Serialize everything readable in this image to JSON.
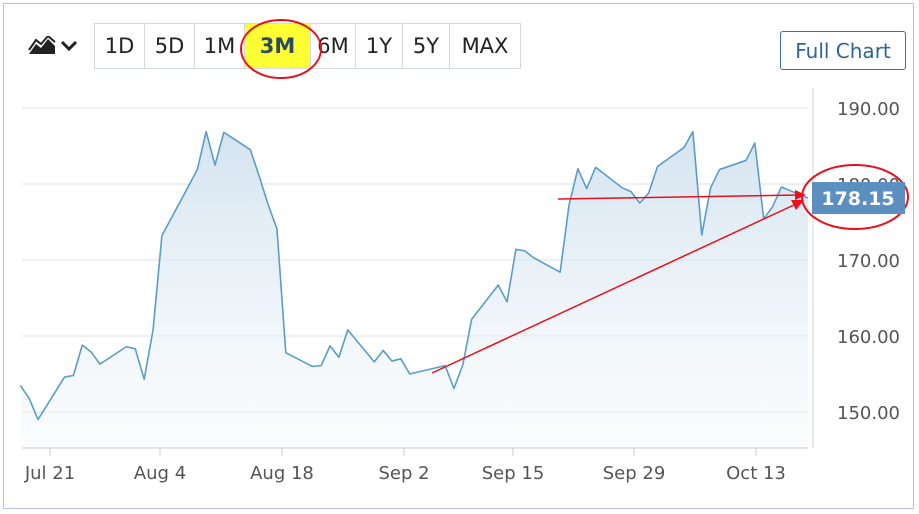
{
  "toolbar": {
    "chart_type_icon": "area-chart-icon",
    "dropdown_icon": "chevron-down-icon",
    "ranges": [
      "1D",
      "5D",
      "1M",
      "3M",
      "6M",
      "1Y",
      "5Y",
      "MAX"
    ],
    "active_range": "3M",
    "full_chart_label": "Full Chart"
  },
  "colors": {
    "line": "#5b9cc8",
    "fill_top": "#cfe1ee",
    "price_tag": "#5a8fc0",
    "annotation": "#e8101a",
    "highlight": "#ffff33"
  },
  "price_tag": {
    "value": "178.15"
  },
  "chart_data": {
    "type": "area",
    "x_ticks": [
      "Jul 21",
      "Aug 4",
      "Aug 18",
      "Sep 2",
      "Sep 15",
      "Sep 29",
      "Oct 13"
    ],
    "y_ticks": [
      "150.00",
      "160.00",
      "170.00",
      "180.00",
      "190.00"
    ],
    "ylim": [
      145,
      193
    ],
    "grid": true,
    "series": [
      {
        "x": [
          "2023-07-19",
          "2023-07-20",
          "2023-07-21",
          "2023-07-24",
          "2023-07-25",
          "2023-07-26",
          "2023-07-27",
          "2023-07-28",
          "2023-07-31",
          "2023-08-01",
          "2023-08-02",
          "2023-08-03",
          "2023-08-04",
          "2023-08-07",
          "2023-08-08",
          "2023-08-09",
          "2023-08-10",
          "2023-08-11",
          "2023-08-14",
          "2023-08-15",
          "2023-08-16",
          "2023-08-17",
          "2023-08-18",
          "2023-08-21",
          "2023-08-22",
          "2023-08-23",
          "2023-08-24",
          "2023-08-25",
          "2023-08-28",
          "2023-08-29",
          "2023-08-30",
          "2023-08-31",
          "2023-09-01",
          "2023-09-05",
          "2023-09-06",
          "2023-09-07",
          "2023-09-08",
          "2023-09-11",
          "2023-09-12",
          "2023-09-13",
          "2023-09-14",
          "2023-09-15",
          "2023-09-18",
          "2023-09-19",
          "2023-09-20",
          "2023-09-21",
          "2023-09-22",
          "2023-09-25",
          "2023-09-26",
          "2023-09-27",
          "2023-09-28",
          "2023-09-29",
          "2023-10-02",
          "2023-10-03",
          "2023-10-04",
          "2023-10-05",
          "2023-10-06",
          "2023-10-09",
          "2023-10-10",
          "2023-10-11",
          "2023-10-12",
          "2023-10-13",
          "2023-10-16"
        ],
        "values": [
          153.5,
          151.8,
          149.0,
          154.6,
          154.8,
          158.8,
          157.9,
          156.3,
          158.6,
          158.3,
          154.3,
          160.8,
          173.2,
          179.7,
          181.9,
          186.9,
          182.5,
          186.8,
          184.5,
          181.0,
          177.3,
          174.1,
          157.8,
          156.0,
          156.1,
          158.7,
          157.2,
          160.8,
          156.6,
          158.1,
          156.7,
          157.0,
          155.0,
          156.1,
          153.1,
          156.2,
          162.2,
          166.7,
          164.5,
          171.4,
          171.2,
          170.3,
          168.4,
          177.2,
          182.0,
          179.4,
          182.2,
          179.5,
          179.0,
          177.5,
          178.8,
          182.3,
          184.8,
          186.9,
          173.3,
          179.5,
          181.9,
          183.1,
          185.4,
          175.4,
          177.0,
          179.6,
          178.15
        ]
      }
    ]
  }
}
